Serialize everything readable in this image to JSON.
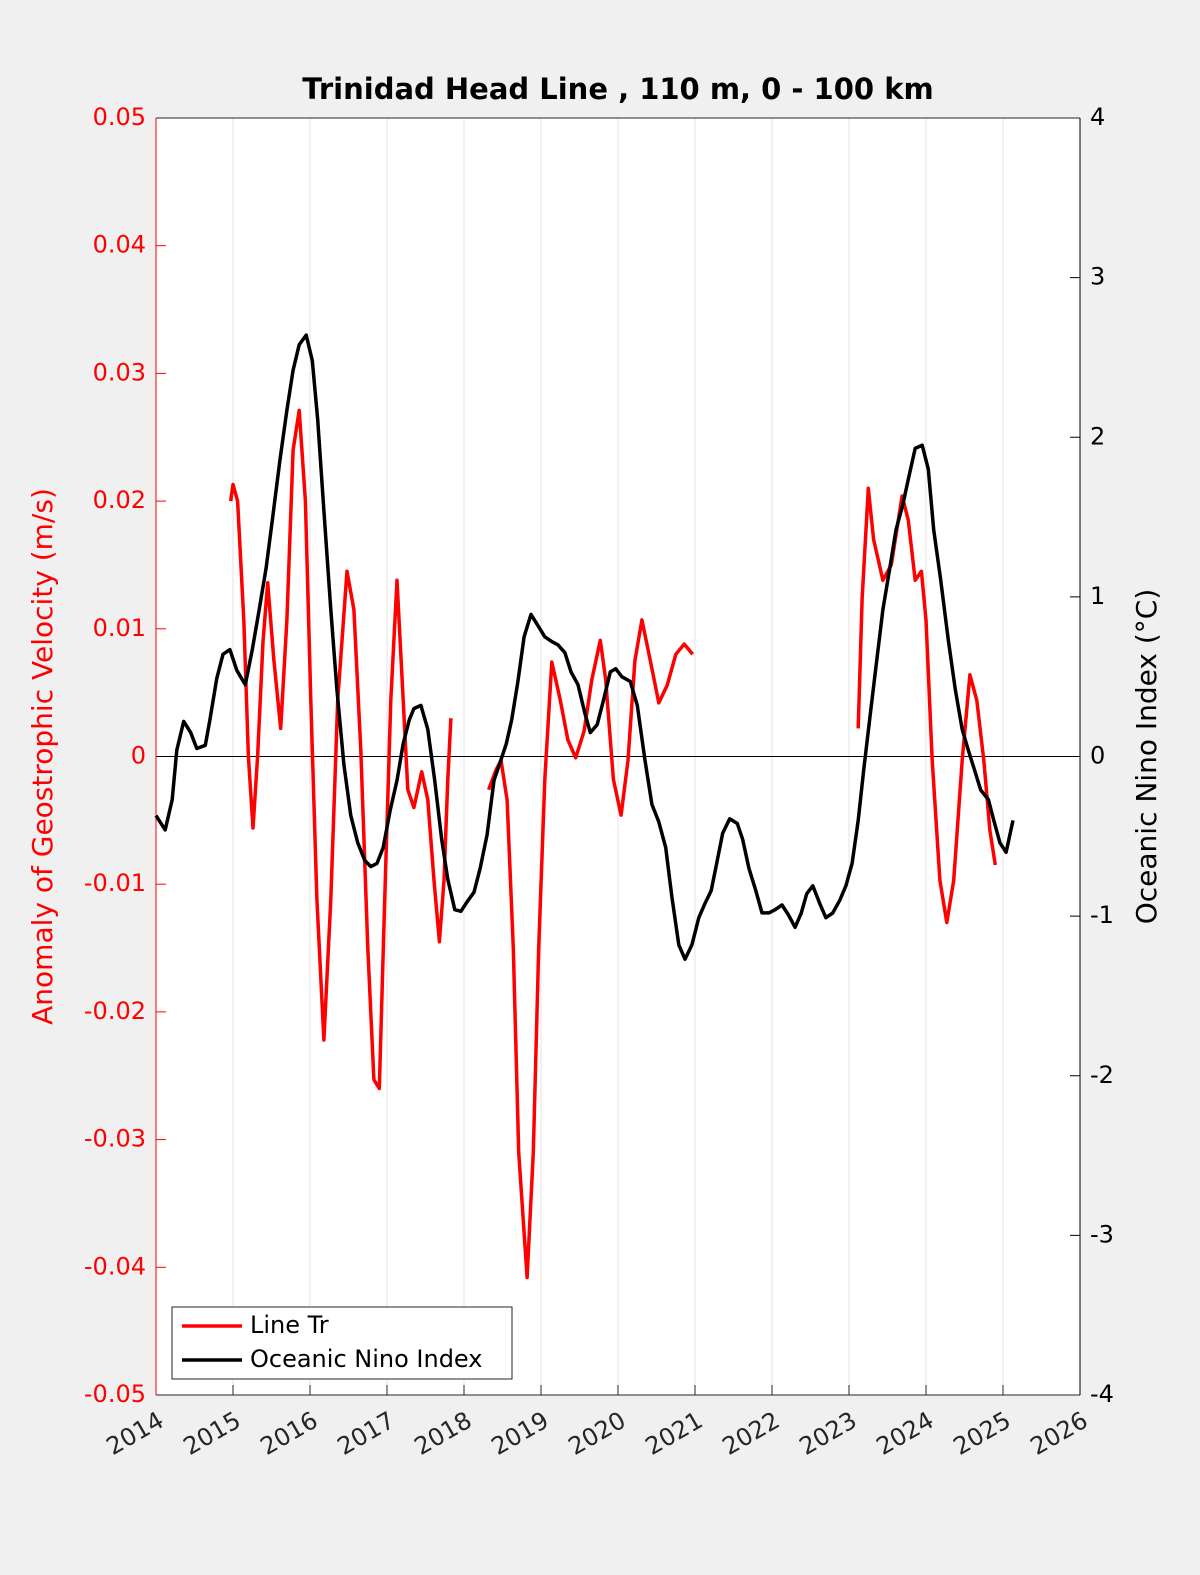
{
  "chart_data": {
    "type": "line",
    "title": "Trinidad Head Line , 110 m, 0 - 100 km",
    "ylabel": "Anomaly of Geostrophic Velocity (m/s)",
    "y2label": "Oceanic Nino Index (°C)",
    "xlim": [
      2014,
      2026
    ],
    "xticks": [
      2014,
      2015,
      2016,
      2017,
      2018,
      2019,
      2020,
      2021,
      2022,
      2023,
      2024,
      2025,
      2026
    ],
    "ylim": [
      -0.05,
      0.05
    ],
    "yticks": [
      -0.05,
      -0.04,
      -0.03,
      -0.02,
      -0.01,
      0,
      0.01,
      0.02,
      0.03,
      0.04,
      0.05
    ],
    "y2lim": [
      -4,
      4
    ],
    "y2ticks": [
      -4,
      -3,
      -2,
      -1,
      0,
      1,
      2,
      3,
      4
    ],
    "xgrid": true,
    "legend": "southwest",
    "ycolor": "#ff0000",
    "y2color": "#000000",
    "series": [
      {
        "name": "Line Tr",
        "color": "#ff0000",
        "x": [
          2014.97,
          2015.0,
          2015.06,
          2015.14,
          2015.2,
          2015.26,
          2015.32,
          2015.39,
          2015.45,
          2015.53,
          2015.62,
          2015.7,
          2015.78,
          2015.86,
          2015.94,
          2016.01,
          2016.09,
          2016.18,
          2016.27,
          2016.36,
          2016.48,
          2016.57,
          2016.66,
          2016.75,
          2016.83,
          2016.9,
          2016.97,
          2017.05,
          2017.13,
          2017.21,
          2017.27,
          2017.35,
          2017.45,
          2017.53,
          2017.61,
          2017.68,
          2017.74,
          2017.79,
          2017.83,
          null,
          2018.32,
          2018.42,
          2018.48,
          2018.56,
          2018.64,
          2018.71,
          2018.82,
          2018.9,
          2018.97,
          2019.05,
          2019.14,
          2019.25,
          2019.35,
          2019.45,
          2019.56,
          2019.66,
          2019.77,
          2019.84,
          2019.94,
          2020.04,
          2020.13,
          2020.22,
          2020.31,
          2020.42,
          2020.53,
          2020.64,
          2020.75,
          2020.86,
          2020.97,
          null,
          2023.12,
          2023.17,
          2023.25,
          2023.32,
          2023.44,
          2023.55,
          2023.69,
          2023.77,
          2023.86,
          2023.94,
          2024.0,
          2024.08,
          2024.18,
          2024.27,
          2024.36,
          2024.47,
          2024.57,
          2024.66,
          2024.75,
          2024.83,
          2024.9
        ],
        "values": [
          0.02,
          0.0213,
          0.02,
          0.0107,
          0,
          -0.0056,
          0,
          0.009,
          0.0136,
          0.0076,
          0.0022,
          0.0107,
          0.024,
          0.0271,
          0.02,
          0.0044,
          -0.0112,
          -0.0222,
          -0.0112,
          0.0044,
          0.0145,
          0.0115,
          0.0005,
          -0.015,
          -0.0253,
          -0.026,
          -0.0112,
          0.0044,
          0.0138,
          0.0044,
          -0.0026,
          -0.004,
          -0.0012,
          -0.0034,
          -0.0097,
          -0.0145,
          -0.0097,
          -0.0018,
          0.003,
          null,
          -0.0026,
          -0.001,
          -0.0003,
          -0.0034,
          -0.015,
          -0.031,
          -0.0408,
          -0.031,
          -0.015,
          -0.0018,
          0.0074,
          0.0044,
          0.0013,
          -0.0001,
          0.002,
          0.006,
          0.0091,
          0.006,
          -0.0018,
          -0.0046,
          -0.0003,
          0.0075,
          0.0107,
          0.0075,
          0.0042,
          0.0056,
          0.008,
          0.0088,
          0.008,
          null,
          0.0022,
          0.0123,
          0.021,
          0.017,
          0.0138,
          0.015,
          0.0204,
          0.0185,
          0.0138,
          0.0145,
          0.0107,
          -0.0003,
          -0.0097,
          -0.013,
          -0.0097,
          -0.0003,
          0.0064,
          0.0044,
          -0.0003,
          -0.0058,
          -0.0085
        ]
      },
      {
        "name": "Oceanic Nino Index",
        "color": "#000000",
        "axis": "y2",
        "x": [
          2014.0,
          2014.12,
          2014.21,
          2014.27,
          2014.36,
          2014.45,
          2014.53,
          2014.64,
          2014.7,
          2014.79,
          2014.87,
          2014.96,
          2015.05,
          2015.16,
          2015.25,
          2015.34,
          2015.43,
          2015.51,
          2015.61,
          2015.7,
          2015.78,
          2015.86,
          2015.95,
          2016.03,
          2016.1,
          2016.18,
          2016.27,
          2016.35,
          2016.44,
          2016.53,
          2016.62,
          2016.71,
          2016.79,
          2016.87,
          2016.95,
          2017.04,
          2017.13,
          2017.21,
          2017.29,
          2017.35,
          2017.44,
          2017.53,
          2017.62,
          2017.71,
          2017.79,
          2017.88,
          2017.96,
          2018.04,
          2018.13,
          2018.21,
          2018.3,
          2018.39,
          2018.48,
          2018.55,
          2018.62,
          2018.7,
          2018.78,
          2018.87,
          2018.96,
          2019.05,
          2019.14,
          2019.22,
          2019.31,
          2019.39,
          2019.48,
          2019.57,
          2019.64,
          2019.73,
          2019.81,
          2019.9,
          2019.97,
          2020.05,
          2020.16,
          2020.25,
          2020.35,
          2020.44,
          2020.53,
          2020.62,
          2020.7,
          2020.79,
          2020.87,
          2020.96,
          2021.05,
          2021.13,
          2021.21,
          2021.29,
          2021.36,
          2021.45,
          2021.55,
          2021.62,
          2021.7,
          2021.79,
          2021.87,
          2021.96,
          2022.04,
          2022.13,
          2022.21,
          2022.3,
          2022.38,
          2022.45,
          2022.53,
          2022.62,
          2022.7,
          2022.79,
          2022.88,
          2022.96,
          2023.04,
          2023.12,
          2023.19,
          2023.27,
          2023.36,
          2023.44,
          2023.53,
          2023.61,
          2023.7,
          2023.78,
          2023.86,
          2023.95,
          2024.03,
          2024.1,
          2024.19,
          2024.29,
          2024.38,
          2024.47,
          2024.55,
          2024.64,
          2024.71,
          2024.81,
          2024.88,
          2024.96,
          2025.04,
          2025.13
        ],
        "values": [
          -0.37,
          -0.46,
          -0.27,
          0.04,
          0.22,
          0.15,
          0.05,
          0.07,
          0.23,
          0.49,
          0.64,
          0.67,
          0.54,
          0.45,
          0.67,
          0.92,
          1.18,
          1.48,
          1.86,
          2.17,
          2.42,
          2.58,
          2.64,
          2.48,
          2.11,
          1.54,
          0.92,
          0.42,
          -0.05,
          -0.37,
          -0.54,
          -0.65,
          -0.69,
          -0.67,
          -0.57,
          -0.34,
          -0.15,
          0.08,
          0.23,
          0.3,
          0.32,
          0.17,
          -0.15,
          -0.52,
          -0.77,
          -0.96,
          -0.97,
          -0.91,
          -0.85,
          -0.7,
          -0.49,
          -0.15,
          -0.02,
          0.08,
          0.23,
          0.47,
          0.75,
          0.89,
          0.82,
          0.75,
          0.72,
          0.7,
          0.65,
          0.53,
          0.45,
          0.27,
          0.15,
          0.2,
          0.35,
          0.53,
          0.55,
          0.5,
          0.47,
          0.32,
          -0.02,
          -0.3,
          -0.41,
          -0.57,
          -0.88,
          -1.18,
          -1.27,
          -1.18,
          -1.01,
          -0.92,
          -0.84,
          -0.65,
          -0.48,
          -0.39,
          -0.42,
          -0.52,
          -0.7,
          -0.84,
          -0.98,
          -0.98,
          -0.96,
          -0.93,
          -0.99,
          -1.07,
          -0.98,
          -0.86,
          -0.81,
          -0.92,
          -1.01,
          -0.98,
          -0.9,
          -0.81,
          -0.67,
          -0.4,
          -0.09,
          0.24,
          0.6,
          0.92,
          1.18,
          1.42,
          1.58,
          1.76,
          1.93,
          1.95,
          1.8,
          1.42,
          1.11,
          0.73,
          0.42,
          0.17,
          0.04,
          -0.1,
          -0.21,
          -0.27,
          -0.4,
          -0.54,
          -0.6,
          -0.4
        ]
      }
    ]
  }
}
